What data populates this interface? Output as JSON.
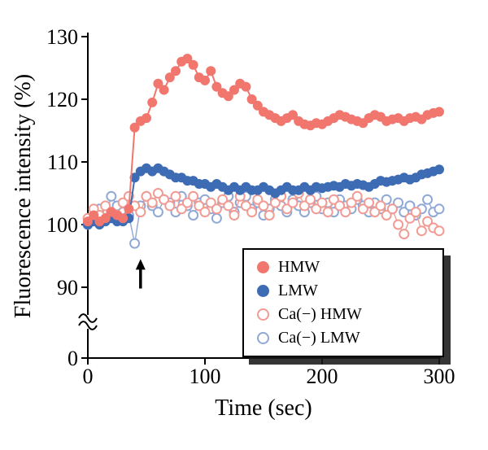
{
  "figure": {
    "x_label": "Time (sec)",
    "y_label": "Fluorescence intensity (%)"
  },
  "colors": {
    "axis": "#000000",
    "hmw": "#F0766E",
    "lmw": "#3D6CB4",
    "ca_hmw": "#F29B93",
    "ca_lmw": "#8FA8D5"
  },
  "chart_data": {
    "type": "scatter",
    "xlabel": "Time (sec)",
    "ylabel": "Fluorescence intensity (%)",
    "x_range": [
      0,
      300
    ],
    "y_range": [
      90,
      130
    ],
    "y_axis_break_to_zero": true,
    "y_zero_label": "0",
    "x_ticks": [
      0,
      100,
      200,
      300
    ],
    "y_ticks": [
      90,
      100,
      110,
      120,
      130
    ],
    "grid": false,
    "legend_position": "lower-right-box",
    "annotation": {
      "type": "arrow-up",
      "x": 45,
      "y_from": 89.8,
      "y_to": 94.5
    },
    "x": [
      0,
      5,
      10,
      15,
      20,
      25,
      30,
      35,
      40,
      45,
      50,
      55,
      60,
      65,
      70,
      75,
      80,
      85,
      90,
      95,
      100,
      105,
      110,
      115,
      120,
      125,
      130,
      135,
      140,
      145,
      150,
      155,
      160,
      165,
      170,
      175,
      180,
      185,
      190,
      195,
      200,
      205,
      210,
      215,
      220,
      225,
      230,
      235,
      240,
      245,
      250,
      255,
      260,
      265,
      270,
      275,
      280,
      285,
      290,
      295,
      300
    ],
    "series": [
      {
        "id": "hmw",
        "name": "HMW",
        "marker": "filled",
        "color": "#F0766E",
        "values": [
          100.5,
          101.5,
          100.5,
          101,
          102,
          101.5,
          101,
          102.5,
          115.5,
          116.5,
          117,
          119.5,
          122.5,
          121.5,
          123.5,
          124.5,
          126,
          126.5,
          125.5,
          123.5,
          123,
          124.5,
          122,
          121,
          120.5,
          121.5,
          122.5,
          122,
          120,
          119,
          118,
          117.5,
          117,
          116.5,
          117,
          117.5,
          116.5,
          116,
          115.8,
          116.2,
          116,
          116.5,
          117,
          117.5,
          117.2,
          116.8,
          116.5,
          116.2,
          117,
          117.5,
          117.2,
          116.5,
          116.8,
          117,
          116.5,
          117,
          117.2,
          116.8,
          117.5,
          117.8,
          118
        ]
      },
      {
        "id": "lmw",
        "name": "LMW",
        "marker": "filled",
        "color": "#3D6CB4",
        "values": [
          100,
          100.5,
          100,
          100.5,
          101,
          100.5,
          100.5,
          101,
          107.5,
          108.5,
          109,
          108.5,
          109,
          108.5,
          108,
          107.5,
          107.5,
          107,
          107,
          106.5,
          106.5,
          106,
          106.5,
          106,
          105.5,
          106,
          105.5,
          106,
          105.5,
          105.5,
          106,
          105.5,
          105,
          105.5,
          106,
          105.5,
          105.5,
          106,
          105.5,
          106,
          105.8,
          106,
          106.2,
          106,
          106.5,
          106.2,
          106.5,
          106.3,
          106,
          106.5,
          107,
          106.8,
          107,
          107.2,
          107.5,
          107.2,
          107.5,
          108,
          108.2,
          108.5,
          108.8
        ]
      },
      {
        "id": "ca-hmw",
        "name": "Ca(−) HMW",
        "marker": "open",
        "color": "#F29B93",
        "values": [
          101,
          102.5,
          101.5,
          103,
          102,
          101.5,
          103.5,
          104.5,
          103,
          102,
          104.5,
          103.5,
          105,
          104,
          103,
          104.5,
          102.5,
          103.5,
          104.5,
          103,
          102,
          103.5,
          102.5,
          104,
          103,
          101.5,
          104.5,
          103,
          102,
          104,
          103,
          101.5,
          103.5,
          104.5,
          102.5,
          103.5,
          105,
          103,
          104,
          102.5,
          103.5,
          102,
          104,
          103,
          102,
          103.5,
          104.5,
          102.5,
          103.5,
          102,
          103,
          101.5,
          102.5,
          100,
          98.5,
          101,
          102,
          99,
          100.5,
          99.5,
          99
        ]
      },
      {
        "id": "ca-lmw",
        "name": "Ca(−) LMW",
        "marker": "open",
        "color": "#8FA8D5",
        "values": [
          100,
          101.5,
          102.5,
          101,
          104.5,
          103,
          102,
          101.5,
          97,
          103,
          104.5,
          103,
          102,
          104,
          103.5,
          102,
          104.5,
          103,
          101.5,
          103.5,
          104,
          102.5,
          101,
          103.5,
          104.5,
          102,
          103.5,
          104.5,
          102.5,
          103.5,
          101.5,
          102.5,
          104,
          103,
          102,
          104,
          103,
          102,
          103.5,
          104.5,
          102.5,
          103.5,
          102,
          104,
          103,
          102.5,
          104,
          103,
          102,
          103.5,
          102.5,
          104,
          102.5,
          103.5,
          102,
          103,
          101.5,
          102.5,
          104,
          102,
          102.5
        ]
      }
    ]
  }
}
